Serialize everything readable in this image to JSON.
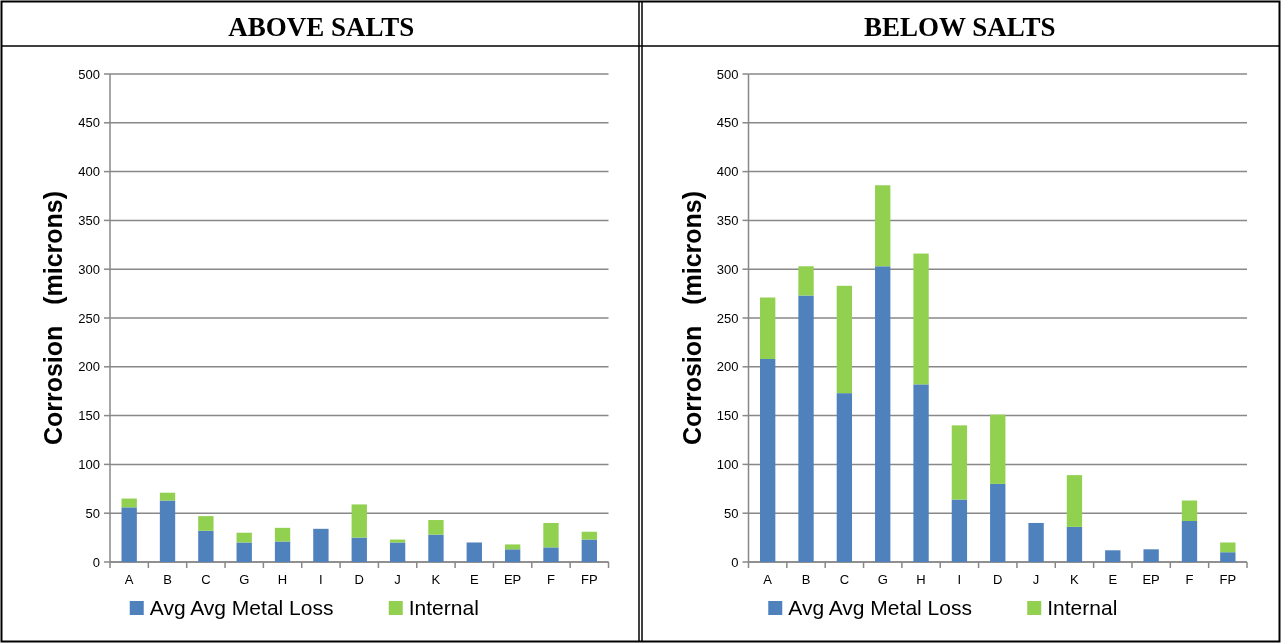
{
  "chart_data": [
    {
      "type": "bar",
      "title": "ABOVE SALTS",
      "ylabel": "Corrosion   (microns)",
      "stacked": true,
      "categories": [
        "A",
        "B",
        "C",
        "G",
        "H",
        "I",
        "D",
        "J",
        "K",
        "E",
        "EP",
        "F",
        "FP"
      ],
      "ylim": [
        0,
        500
      ],
      "yticks": [
        0,
        50,
        100,
        150,
        200,
        250,
        300,
        350,
        400,
        450,
        500
      ],
      "grid": "y",
      "legend": "bottom",
      "series": [
        {
          "name": "Avg Avg Metal Loss",
          "color": "#4f81bd",
          "values": [
            56,
            63,
            32,
            20,
            21,
            34,
            25,
            20,
            28,
            20,
            13,
            15,
            23
          ]
        },
        {
          "name": "Internal",
          "color": "#92d050",
          "values": [
            9,
            8,
            15,
            10,
            14,
            0,
            34,
            3,
            15,
            0,
            5,
            25,
            8
          ]
        }
      ]
    },
    {
      "type": "bar",
      "title": "BELOW SALTS",
      "ylabel": "Corrosion   (microns)",
      "stacked": true,
      "categories": [
        "A",
        "B",
        "C",
        "G",
        "H",
        "I",
        "D",
        "J",
        "K",
        "E",
        "EP",
        "F",
        "FP"
      ],
      "ylim": [
        0,
        500
      ],
      "yticks": [
        0,
        50,
        100,
        150,
        200,
        250,
        300,
        350,
        400,
        450,
        500
      ],
      "grid": "y",
      "legend": "bottom",
      "series": [
        {
          "name": "Avg Avg Metal Loss",
          "color": "#4f81bd",
          "values": [
            208,
            273,
            173,
            303,
            182,
            64,
            80,
            40,
            36,
            12,
            13,
            42,
            10
          ]
        },
        {
          "name": "Internal",
          "color": "#92d050",
          "values": [
            63,
            30,
            110,
            83,
            134,
            76,
            71,
            0,
            53,
            0,
            0,
            21,
            10
          ]
        }
      ]
    }
  ]
}
